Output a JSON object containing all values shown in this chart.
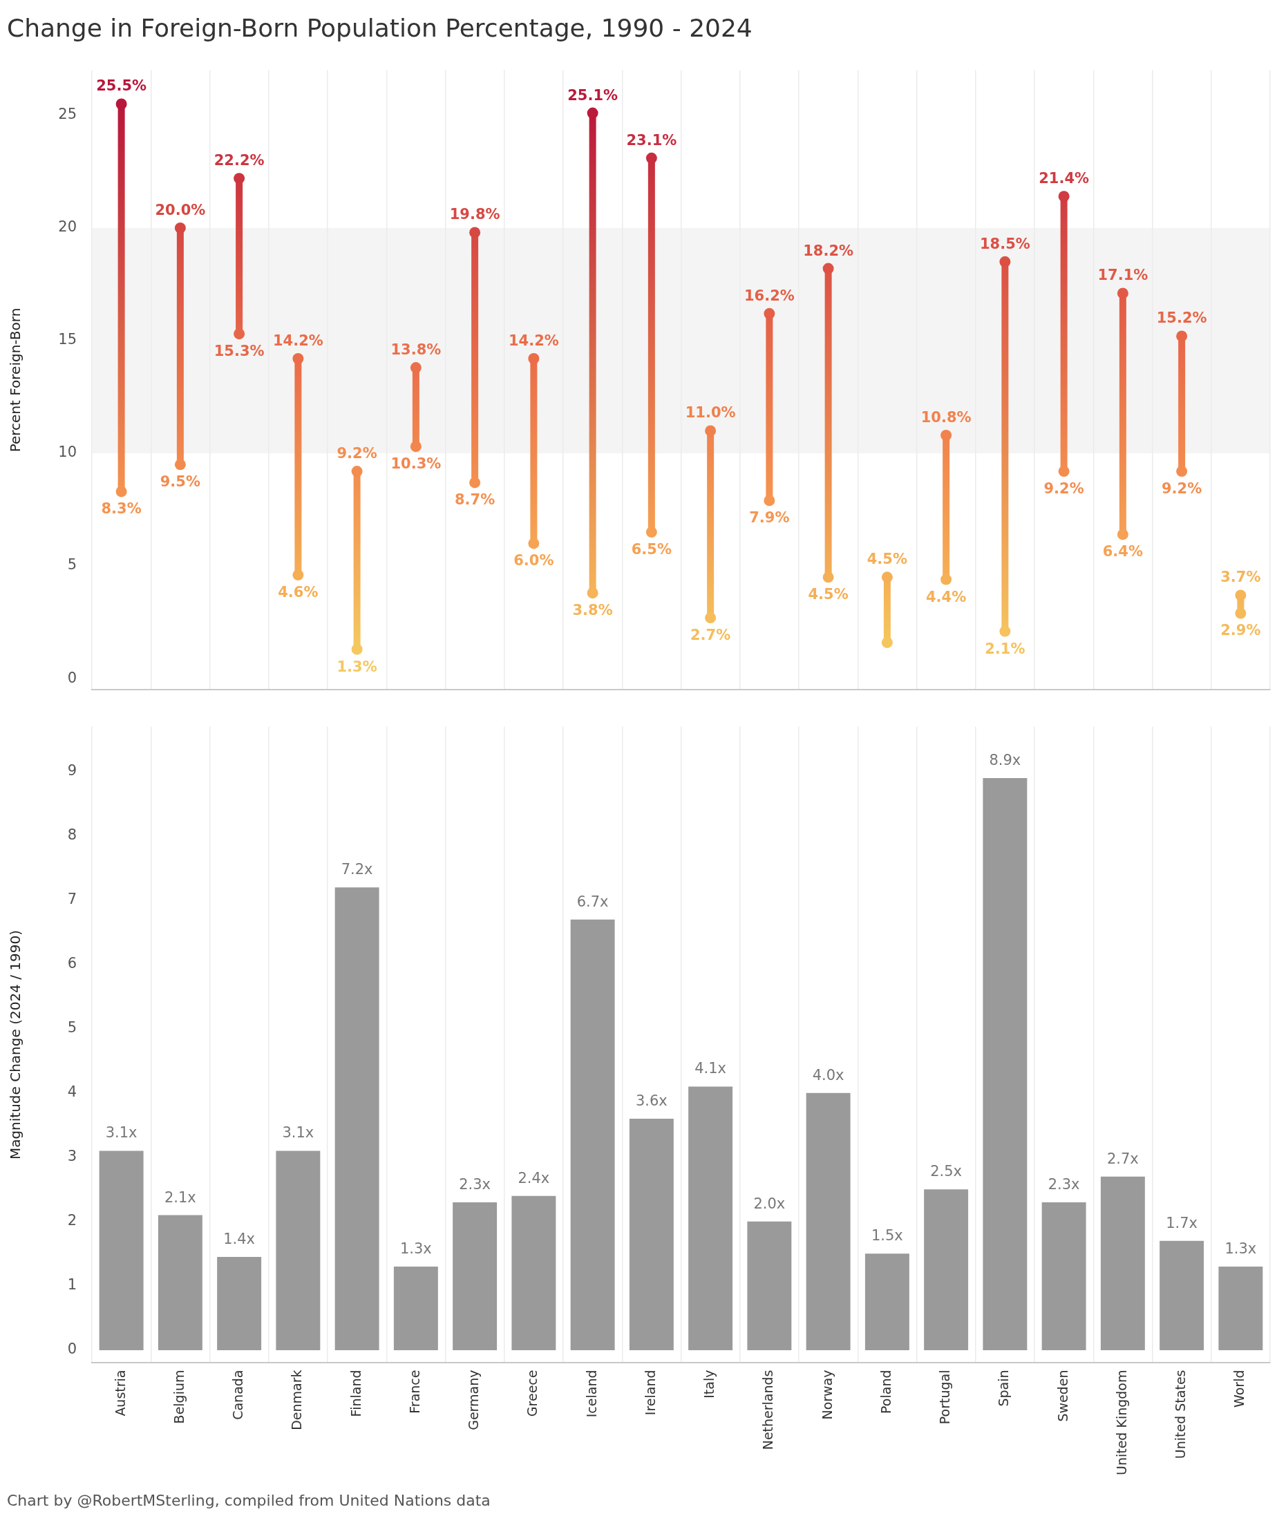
{
  "chart_data": [
    {
      "type": "scatter",
      "title": "Change in Foreign-Born Population Percentage, 1990 - 2024",
      "ylabel": "Percent Foreign-Born",
      "categories": [
        null,
        null,
        null,
        null,
        null,
        null,
        null,
        null,
        null,
        null,
        null,
        null,
        null,
        null,
        null,
        null,
        null,
        null,
        null,
        null
      ],
      "series": [
        {
          "values": [
            25.5,
            20.0,
            22.2,
            14.2,
            9.2,
            13.8,
            19.8,
            14.2,
            25.1,
            23.1,
            11.0,
            16.2,
            18.2,
            4.5,
            10.8,
            18.5,
            21.4,
            17.1,
            15.2,
            3.7
          ],
          "colors": [
            "#b8163a",
            "#d64742",
            "#cc3540",
            "#ea6c49",
            "#f38d4f",
            "#eb6f4a",
            "#d74843",
            "#ea6c49",
            "#bb1a3b",
            "#c72e3f",
            "#f0814c",
            "#e46047",
            "#dd5245",
            "#f5af56",
            "#f1824d",
            "#dc5044",
            "#d03c41",
            "#e15a46",
            "#e76648",
            "#f5b558"
          ],
          "value_labels": [
            "25.5%",
            "20.0%",
            "22.2%",
            "14.2%",
            "9.2%",
            "13.8%",
            "19.8%",
            "14.2%",
            "25.1%",
            "23.1%",
            "11.0%",
            "16.2%",
            "18.2%",
            "4.5%",
            "10.8%",
            "18.5%",
            "21.4%",
            "17.1%",
            "15.2%",
            "3.7%"
          ]
        },
        {
          "values": [
            8.3,
            9.5,
            15.3,
            4.6,
            1.3,
            10.3,
            8.7,
            6.0,
            3.8,
            6.5,
            2.7,
            7.9,
            4.5,
            1.6,
            4.4,
            2.1,
            9.2,
            6.4,
            9.2,
            2.9
          ],
          "colors": [
            "#f49350",
            "#f38b4e",
            "#e76648",
            "#f5ae55",
            "#f5c85f",
            "#f2864d",
            "#f4904f",
            "#f6a453",
            "#f5b458",
            "#f6a052",
            "#f5bd5b",
            "#f59651",
            "#f5af56",
            "#f5c65e",
            "#f5b056",
            "#f5c25d",
            "#f38d4f",
            "#f6a153",
            "#f38d4f",
            "#f5bb5a"
          ],
          "value_labels": [
            "8.3%",
            "9.5%",
            "15.3%",
            "4.6%",
            "1.3%",
            "10.3%",
            "8.7%",
            "6.0%",
            "3.8%",
            "6.5%",
            "2.7%",
            "7.9%",
            "4.5%",
            null,
            "4.4%",
            "2.1%",
            "9.2%",
            "6.4%",
            "9.2%",
            "2.9%"
          ]
        }
      ],
      "ylim": [
        -0.5,
        27
      ],
      "yticks": [
        0,
        5,
        10,
        15,
        20,
        25
      ],
      "bands": [
        {
          "axis": "y",
          "from": 10,
          "to": 20,
          "color": "#f4f4f4"
        }
      ],
      "grid": "x",
      "tick_labels": "y"
    },
    {
      "type": "bar",
      "ylabel": "Magnitude Change (2024 / 1990)",
      "categories": [
        "Austria",
        "Belgium",
        "Canada",
        "Denmark",
        "Finland",
        "France",
        "Germany",
        "Greece",
        "Iceland",
        "Ireland",
        "Italy",
        "Netherlands",
        "Norway",
        "Poland",
        "Portugal",
        "Spain",
        "Sweden",
        "United Kingdom",
        "United States",
        "World"
      ],
      "values": [
        3.1,
        2.1,
        1.45,
        3.1,
        7.2,
        1.3,
        2.3,
        2.4,
        6.7,
        3.6,
        4.1,
        2.0,
        4.0,
        1.5,
        2.5,
        8.9,
        2.3,
        2.7,
        1.7,
        1.3
      ],
      "color": "#9a9a9a",
      "value_labels": [
        "3.1x",
        "2.1x",
        "1.4x",
        "3.1x",
        "7.2x",
        "1.3x",
        "2.3x",
        "2.4x",
        "6.7x",
        "3.6x",
        "4.1x",
        "2.0x",
        "4.0x",
        "1.5x",
        "2.5x",
        "8.9x",
        "2.3x",
        "2.7x",
        "1.7x",
        "1.3x"
      ],
      "ylim": [
        -0.2,
        9.7
      ],
      "yticks": [
        0,
        1,
        2,
        3,
        4,
        5,
        6,
        7,
        8,
        9
      ],
      "grid": "x",
      "annotations": [
        "Chart by @RobertMSterling, compiled from United Nations data"
      ]
    }
  ]
}
